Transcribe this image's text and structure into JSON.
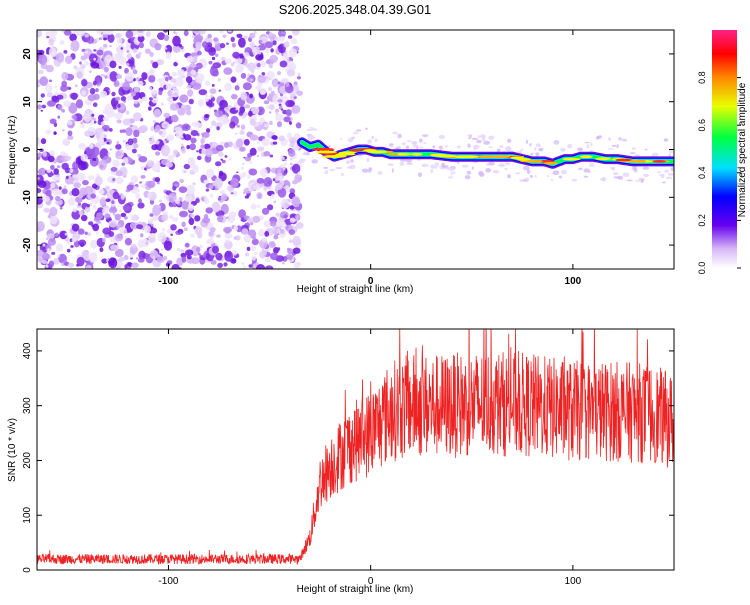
{
  "title": "S206.2025.348.04.39.G01",
  "chart_data": [
    {
      "type": "heatmap",
      "xlabel": "Height of straight line (km)",
      "ylabel": "Frequency (Hz)",
      "xlim": [
        -165,
        150
      ],
      "ylim": [
        -25,
        25
      ],
      "xticks": [
        -100,
        0,
        100
      ],
      "yticks": [
        -20,
        -10,
        0,
        10,
        20
      ],
      "noise_region_x": [
        -165,
        -35
      ],
      "carrier_track": {
        "x": [
          -34,
          -30,
          -26,
          -22,
          -18,
          -14,
          -10,
          -6,
          -2,
          2,
          6,
          10,
          14,
          20,
          30,
          40,
          50,
          60,
          70,
          80,
          86,
          90,
          96,
          100,
          104,
          110,
          116,
          122,
          130,
          140,
          150
        ],
        "y": [
          1.5,
          0.5,
          1.0,
          -0.5,
          -1.5,
          -1.0,
          -0.5,
          0.0,
          0.0,
          -0.5,
          -0.5,
          -1.0,
          -1.0,
          -1.0,
          -1.0,
          -1.5,
          -1.5,
          -1.5,
          -1.5,
          -2.5,
          -2.5,
          -3.0,
          -2.0,
          -2.0,
          -1.5,
          -1.5,
          -2.0,
          -2.0,
          -2.5,
          -2.5,
          -2.5
        ]
      },
      "colorbar": {
        "label": "Normalized spectral amplitude",
        "range": [
          0,
          1
        ],
        "ticks": [
          0.0,
          0.2,
          0.4,
          0.6,
          0.8
        ]
      }
    },
    {
      "type": "line",
      "xlabel": "Height of straight line (km)",
      "ylabel": "SNR (10 * v/v)",
      "xlim": [
        -165,
        150
      ],
      "ylim": [
        0,
        440
      ],
      "xticks": [
        -100,
        0,
        100
      ],
      "yticks": [
        0,
        100,
        200,
        300,
        400
      ],
      "series": [
        {
          "color": "#ee2222",
          "envelope": {
            "x": [
              -165,
              -35,
              -30,
              -25,
              -20,
              -10,
              0,
              10,
              20,
              40,
              60,
              80,
              100,
              120,
              140,
              150
            ],
            "y": [
              20,
              20,
              60,
              160,
              190,
              230,
              250,
              290,
              300,
              300,
              305,
              300,
              290,
              290,
              285,
              270
            ]
          }
        }
      ]
    }
  ]
}
